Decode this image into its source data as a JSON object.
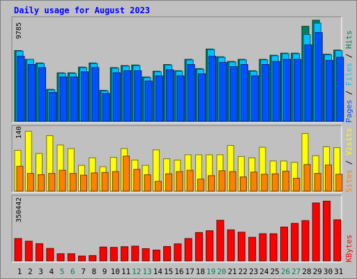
{
  "chart_data": {
    "type": "bar",
    "title": "Daily usage for August 2023",
    "categories": [
      "1",
      "2",
      "3",
      "4",
      "5",
      "6",
      "7",
      "8",
      "9",
      "10",
      "11",
      "12",
      "13",
      "14",
      "15",
      "16",
      "17",
      "18",
      "19",
      "20",
      "21",
      "22",
      "23",
      "24",
      "25",
      "26",
      "27",
      "28",
      "29",
      "30",
      "31"
    ],
    "weekend_days": [
      "5",
      "6",
      "12",
      "13",
      "19",
      "20",
      "26",
      "27"
    ],
    "panels": [
      {
        "id": "hits-files-pages",
        "ymax_label": "9785",
        "ylim": [
          0,
          9785
        ],
        "right_label": [
          "Pages",
          "Files",
          "Hits"
        ],
        "series": [
          {
            "name": "Hits",
            "color": "#00805c",
            "values": [
              6850,
              6000,
              5650,
              3100,
              4700,
              4700,
              5250,
              5650,
              3000,
              5200,
              5400,
              5450,
              4300,
              4850,
              5500,
              4900,
              6000,
              5100,
              7000,
              6250,
              5800,
              6000,
              4900,
              6000,
              6400,
              6600,
              6600,
              9200,
              9785,
              6500,
              6900
            ]
          },
          {
            "name": "Files",
            "color": "#00c0ff",
            "values": [
              6800,
              6000,
              5600,
              3050,
              4650,
              4650,
              5200,
              5600,
              2950,
              5150,
              5350,
              5400,
              4250,
              4800,
              5450,
              4850,
              5950,
              5050,
              6950,
              6200,
              5750,
              5950,
              4850,
              5950,
              6350,
              6550,
              6550,
              8400,
              9500,
              6450,
              6850
            ]
          },
          {
            "name": "Pages",
            "color": "#0050ff",
            "values": [
              6300,
              5500,
              5200,
              2800,
              4300,
              4300,
              4800,
              5200,
              2700,
              4700,
              4900,
              4900,
              3900,
              4400,
              5000,
              4400,
              5500,
              4600,
              6300,
              5700,
              5300,
              5500,
              4400,
              5500,
              5800,
              6000,
              6000,
              7400,
              8600,
              5900,
              6200
            ]
          }
        ]
      },
      {
        "id": "visits-sites",
        "ymax_label": "140",
        "ylim": [
          0,
          140
        ],
        "right_label": [
          "Sites",
          "Visits"
        ],
        "series": [
          {
            "name": "Visits",
            "color": "#ffff00",
            "values": [
              92,
              135,
              85,
              125,
              104,
              96,
              58,
              75,
              55,
              76,
              96,
              70,
              58,
              93,
              73,
              70,
              82,
              82,
              82,
              82,
              103,
              78,
              75,
              99,
              68,
              68,
              65,
              130,
              80,
              100,
              98
            ]
          },
          {
            "name": "Sites",
            "color": "#ff8000",
            "values": [
              56,
              40,
              37,
              40,
              47,
              40,
              36,
              41,
              42,
              44,
              79,
              49,
              37,
              22,
              39,
              44,
              47,
              27,
              35,
              46,
              44,
              32,
              43,
              38,
              39,
              45,
              29,
              60,
              40,
              59,
              38
            ]
          }
        ]
      },
      {
        "id": "kbytes",
        "ymax_label": "350442",
        "ylim": [
          0,
          350442
        ],
        "right_label": [
          "KBytes"
        ],
        "series": [
          {
            "name": "KBytes",
            "color": "#ff0000",
            "values": [
              126000,
              111000,
              97000,
              70000,
              40000,
              40000,
              27000,
              30000,
              78000,
              76000,
              80000,
              83000,
              69000,
              61000,
              81000,
              96000,
              126000,
              160000,
              170000,
              229000,
              175000,
              162000,
              133000,
              153000,
              153000,
              191000,
              212000,
              227000,
              327000,
              337000,
              232000
            ]
          }
        ]
      }
    ]
  }
}
